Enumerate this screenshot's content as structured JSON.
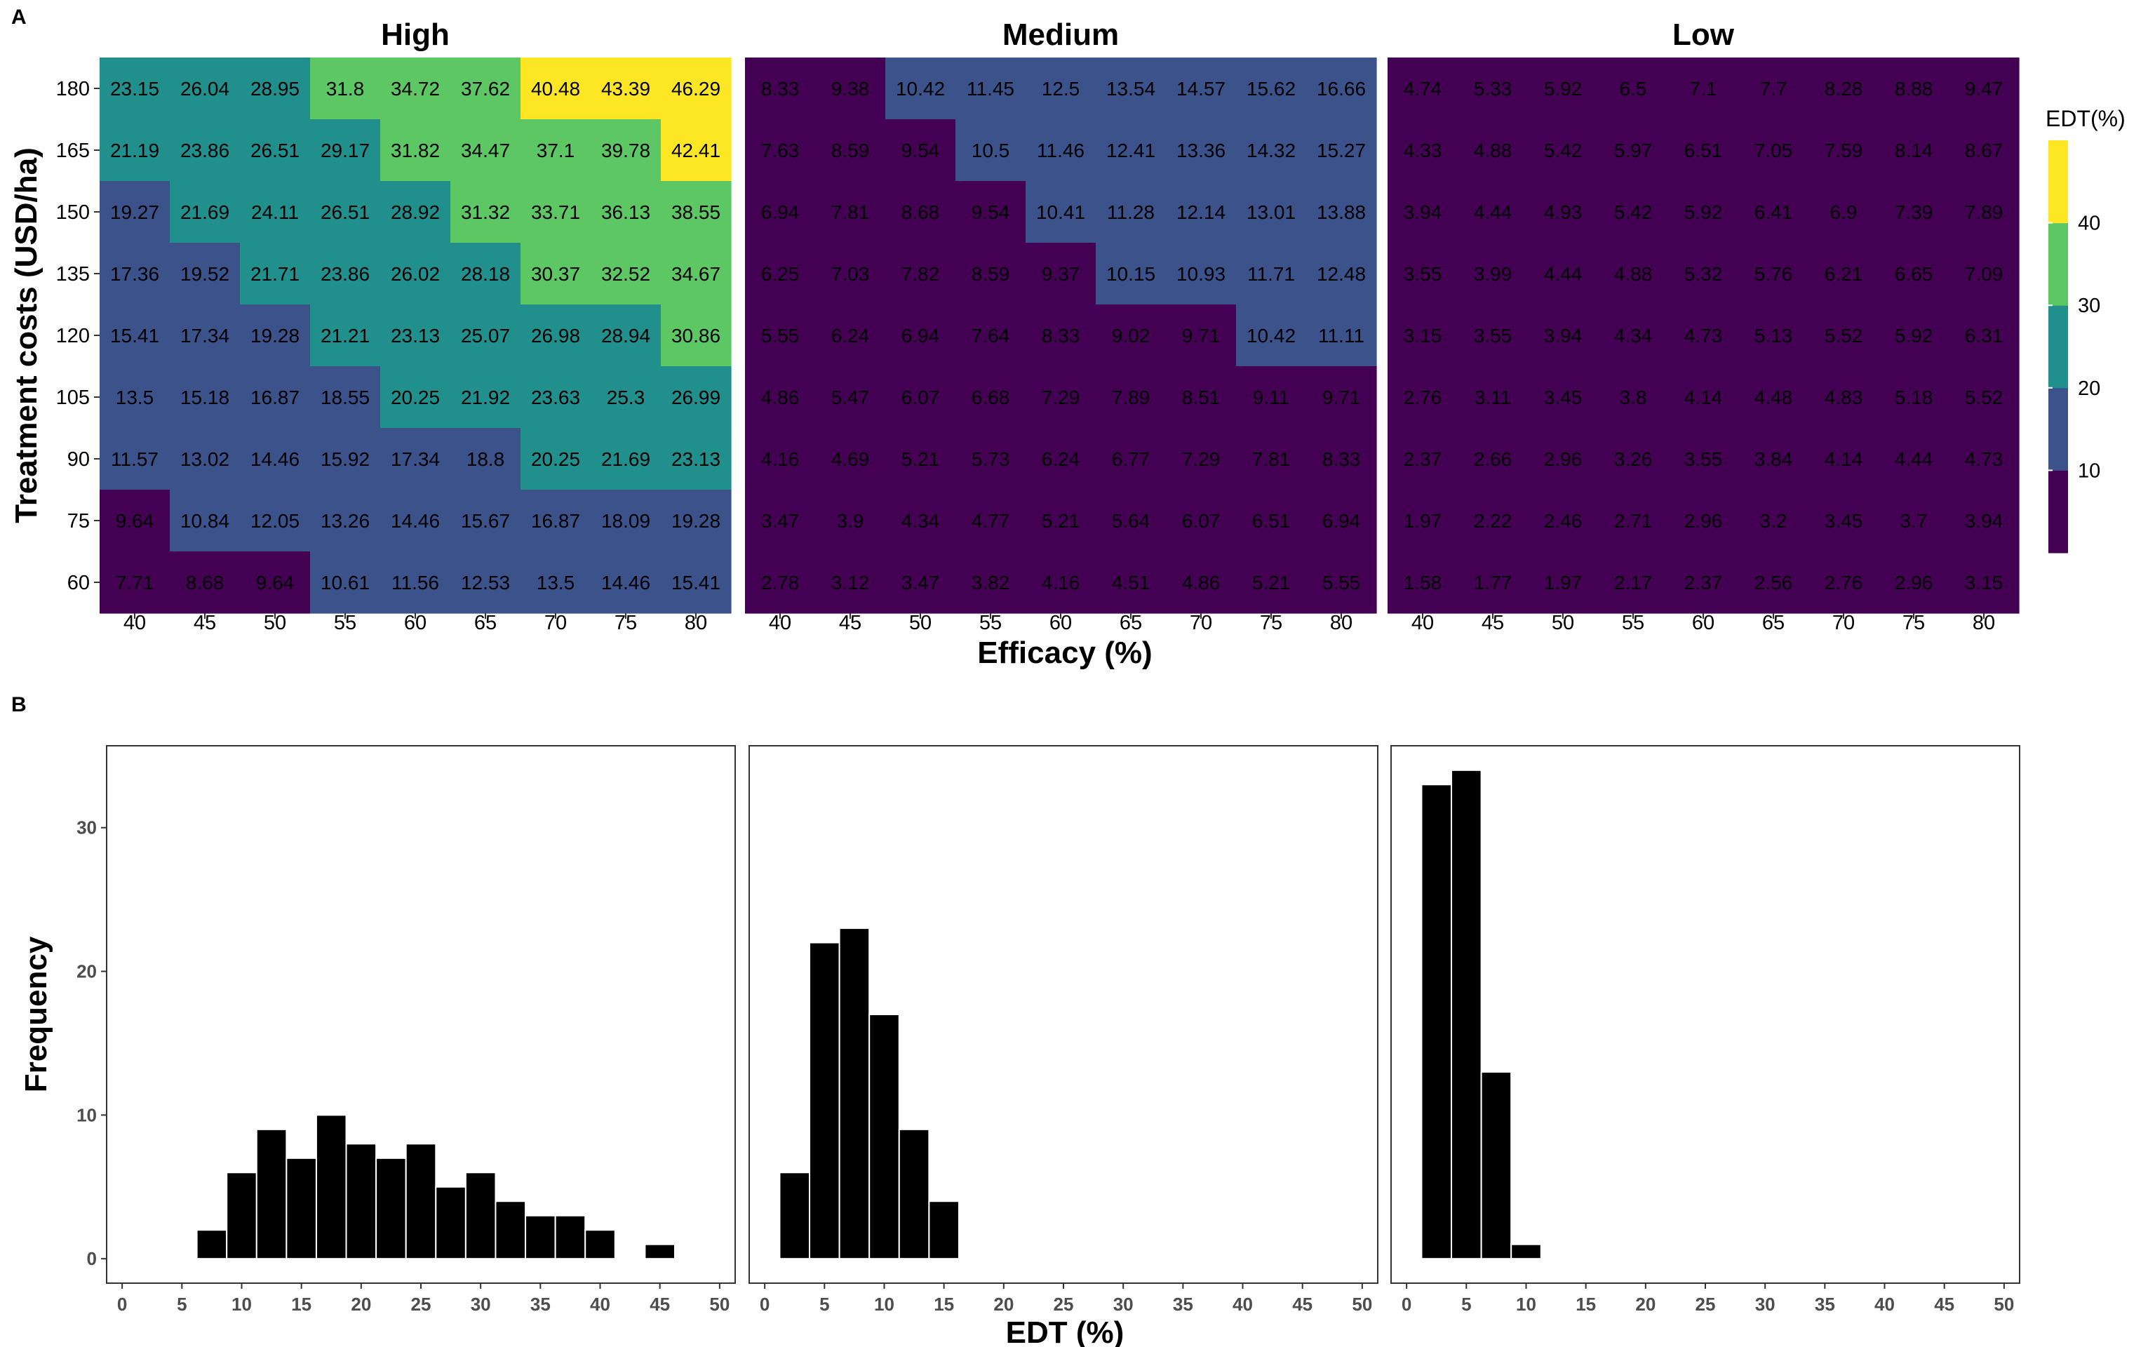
{
  "panel_labels": [
    "A",
    "B"
  ],
  "heatmap": {
    "legend_title": "EDT(%)",
    "legend_ticks": [
      10,
      20,
      30,
      40
    ],
    "legend_colors": [
      "#440154",
      "#3b528b",
      "#21908c",
      "#5dc863",
      "#fde725"
    ]
  },
  "chart_data": [
    {
      "type": "heatmap",
      "panel": "A",
      "facets": [
        "High",
        "Medium",
        "Low"
      ],
      "xlabel": "Efficacy (%)",
      "ylabel": "Treatment costs (USD/ha)",
      "x": [
        40,
        45,
        50,
        55,
        60,
        65,
        70,
        75,
        80
      ],
      "y": [
        180,
        165,
        150,
        135,
        120,
        105,
        90,
        75,
        60
      ],
      "legend_title": "EDT(%)",
      "color_bins": [
        [
          0,
          10
        ],
        [
          10,
          20
        ],
        [
          20,
          30
        ],
        [
          30,
          40
        ],
        [
          40,
          50
        ]
      ],
      "values": {
        "High": [
          [
            23.15,
            26.04,
            28.95,
            31.8,
            34.72,
            37.62,
            40.48,
            43.39,
            46.29
          ],
          [
            21.19,
            23.86,
            26.51,
            29.17,
            31.82,
            34.47,
            37.1,
            39.78,
            42.41
          ],
          [
            19.27,
            21.69,
            24.11,
            26.51,
            28.92,
            31.32,
            33.71,
            36.13,
            38.55
          ],
          [
            17.36,
            19.52,
            21.71,
            23.86,
            26.02,
            28.18,
            30.37,
            32.52,
            34.67
          ],
          [
            15.41,
            17.34,
            19.28,
            21.21,
            23.13,
            25.07,
            26.98,
            28.94,
            30.86
          ],
          [
            13.5,
            15.18,
            16.87,
            18.55,
            20.25,
            21.92,
            23.63,
            25.3,
            26.99
          ],
          [
            11.57,
            13.02,
            14.46,
            15.92,
            17.34,
            18.8,
            20.25,
            21.69,
            23.13
          ],
          [
            9.64,
            10.84,
            12.05,
            13.26,
            14.46,
            15.67,
            16.87,
            18.09,
            19.28
          ],
          [
            7.71,
            8.68,
            9.64,
            10.61,
            11.56,
            12.53,
            13.5,
            14.46,
            15.41
          ]
        ],
        "Medium": [
          [
            8.33,
            9.38,
            10.42,
            11.45,
            12.5,
            13.54,
            14.57,
            15.62,
            16.66
          ],
          [
            7.63,
            8.59,
            9.54,
            10.5,
            11.46,
            12.41,
            13.36,
            14.32,
            15.27
          ],
          [
            6.94,
            7.81,
            8.68,
            9.54,
            10.41,
            11.28,
            12.14,
            13.01,
            13.88
          ],
          [
            6.25,
            7.03,
            7.82,
            8.59,
            9.37,
            10.15,
            10.93,
            11.71,
            12.48
          ],
          [
            5.55,
            6.24,
            6.94,
            7.64,
            8.33,
            9.02,
            9.71,
            10.42,
            11.11
          ],
          [
            4.86,
            5.47,
            6.07,
            6.68,
            7.29,
            7.89,
            8.51,
            9.11,
            9.71
          ],
          [
            4.16,
            4.69,
            5.21,
            5.73,
            6.24,
            6.77,
            7.29,
            7.81,
            8.33
          ],
          [
            3.47,
            3.9,
            4.34,
            4.77,
            5.21,
            5.64,
            6.07,
            6.51,
            6.94
          ],
          [
            2.78,
            3.12,
            3.47,
            3.82,
            4.16,
            4.51,
            4.86,
            5.21,
            5.55
          ]
        ],
        "Low": [
          [
            4.74,
            5.33,
            5.92,
            6.5,
            7.1,
            7.7,
            8.28,
            8.88,
            9.47
          ],
          [
            4.33,
            4.88,
            5.42,
            5.97,
            6.51,
            7.05,
            7.59,
            8.14,
            8.67
          ],
          [
            3.94,
            4.44,
            4.93,
            5.42,
            5.92,
            6.41,
            6.9,
            7.39,
            7.89
          ],
          [
            3.55,
            3.99,
            4.44,
            4.88,
            5.32,
            5.76,
            6.21,
            6.65,
            7.09
          ],
          [
            3.15,
            3.55,
            3.94,
            4.34,
            4.73,
            5.13,
            5.52,
            5.92,
            6.31
          ],
          [
            2.76,
            3.11,
            3.45,
            3.8,
            4.14,
            4.48,
            4.83,
            5.18,
            5.52
          ],
          [
            2.37,
            2.66,
            2.96,
            3.26,
            3.55,
            3.84,
            4.14,
            4.44,
            4.73
          ],
          [
            1.97,
            2.22,
            2.46,
            2.71,
            2.96,
            3.2,
            3.45,
            3.7,
            3.94
          ],
          [
            1.58,
            1.77,
            1.97,
            2.17,
            2.37,
            2.56,
            2.76,
            2.96,
            3.15
          ]
        ]
      }
    },
    {
      "type": "bar",
      "panel": "B",
      "subtype": "histogram",
      "xlabel": "EDT (%)",
      "ylabel": "Frequency",
      "x_ticks": [
        0,
        5,
        10,
        15,
        20,
        25,
        30,
        35,
        40,
        45,
        50
      ],
      "y_ticks": [
        0,
        10,
        20,
        30
      ],
      "xlim": [
        -1.3,
        51.3
      ],
      "ylim": [
        -1.7,
        35.7
      ],
      "bin_width": 2.5,
      "grid": false,
      "panels": [
        {
          "facet": "High",
          "bin_centers": [
            7.5,
            10,
            12.5,
            15,
            17.5,
            20,
            22.5,
            25,
            27.5,
            30,
            32.5,
            35,
            37.5,
            40,
            42.5,
            45,
            47.5
          ],
          "counts": [
            2,
            6,
            9,
            7,
            10,
            8,
            7,
            8,
            5,
            6,
            4,
            3,
            3,
            2,
            0,
            1,
            0
          ]
        },
        {
          "facet": "Medium",
          "bin_centers": [
            2.5,
            5,
            7.5,
            10,
            12.5,
            15
          ],
          "counts": [
            6,
            22,
            23,
            17,
            9,
            4
          ]
        },
        {
          "facet": "Low",
          "bin_centers": [
            2.5,
            5,
            7.5,
            10
          ],
          "counts": [
            33,
            34,
            13,
            1
          ]
        }
      ]
    }
  ]
}
